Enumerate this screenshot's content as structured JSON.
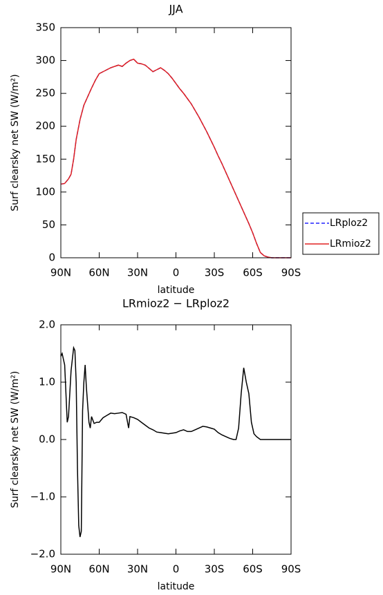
{
  "chart_data": [
    {
      "type": "line",
      "title": "JJA",
      "x_label": "latitude",
      "y_label": "Surf clearsky net SW (W/m²)",
      "x": [
        90,
        87,
        84,
        82,
        80,
        78,
        75,
        72,
        69,
        66,
        63,
        60,
        57,
        54,
        51,
        48,
        45,
        42,
        39,
        36,
        33,
        30,
        27,
        24,
        21,
        18,
        15,
        12,
        9,
        6,
        3,
        0,
        -3,
        -6,
        -9,
        -12,
        -15,
        -18,
        -21,
        -24,
        -27,
        -30,
        -33,
        -36,
        -39,
        -42,
        -45,
        -48,
        -51,
        -54,
        -57,
        -60,
        -63,
        -66,
        -69,
        -72,
        -75,
        -80,
        -85,
        -90
      ],
      "series": [
        {
          "name": "LRploz2",
          "color": "#2020ff",
          "style": "dashed",
          "values": [
            112,
            113,
            120,
            127,
            150,
            180,
            210,
            232,
            245,
            258,
            270,
            280,
            283,
            286,
            289,
            291,
            293,
            291,
            296,
            300,
            302,
            296,
            295,
            293,
            288,
            283,
            286,
            289,
            285,
            280,
            273,
            265,
            257,
            250,
            242,
            234,
            224,
            214,
            203,
            192,
            180,
            168,
            155,
            143,
            130,
            117,
            104,
            91,
            78,
            65,
            52,
            38,
            22,
            8,
            3,
            1,
            0,
            0,
            0,
            0
          ]
        },
        {
          "name": "LRmioz2",
          "color": "#e02020",
          "style": "solid",
          "values": [
            112,
            113,
            120,
            127,
            150,
            180,
            210,
            232,
            245,
            258,
            270,
            280,
            283,
            286,
            289,
            291,
            293,
            291,
            296,
            300,
            302,
            296,
            295,
            293,
            288,
            283,
            286,
            289,
            285,
            280,
            273,
            265,
            257,
            250,
            242,
            234,
            224,
            214,
            203,
            192,
            180,
            168,
            155,
            143,
            130,
            117,
            104,
            91,
            78,
            65,
            52,
            38,
            22,
            8,
            3,
            1,
            0,
            0,
            0,
            0
          ]
        }
      ],
      "xlim": [
        90,
        -90
      ],
      "xticks": [
        {
          "value": 90,
          "label": "90N"
        },
        {
          "value": 60,
          "label": "60N"
        },
        {
          "value": 30,
          "label": "30N"
        },
        0,
        {
          "value": -30,
          "label": "30S"
        },
        {
          "value": -60,
          "label": "60S"
        },
        {
          "value": -90,
          "label": "90S"
        }
      ],
      "ylim": [
        0,
        350
      ],
      "yticks": [
        0,
        50,
        100,
        150,
        200,
        250,
        300,
        350
      ],
      "legend": "right"
    },
    {
      "type": "line",
      "title": "LRmioz2 − LRploz2",
      "x_label": "latitude",
      "y_label": "Surf clearsky net SW (W/m²)",
      "x": [
        90,
        89,
        87,
        86,
        85,
        84,
        83,
        82,
        81,
        80,
        79,
        78,
        77,
        76,
        75,
        74,
        73,
        72,
        71,
        70,
        69,
        68,
        67,
        66,
        64,
        62,
        60,
        57,
        54,
        51,
        48,
        45,
        42,
        39,
        37,
        36,
        33,
        30,
        27,
        24,
        21,
        18,
        15,
        12,
        9,
        6,
        3,
        0,
        -3,
        -6,
        -9,
        -12,
        -15,
        -18,
        -21,
        -24,
        -27,
        -30,
        -33,
        -36,
        -39,
        -42,
        -45,
        -47,
        -49,
        -51,
        -53,
        -55,
        -57,
        -59,
        -61,
        -63,
        -66,
        -70,
        -80,
        -90
      ],
      "values": [
        1.45,
        1.5,
        1.3,
        0.8,
        0.3,
        0.4,
        0.8,
        1.2,
        1.4,
        1.6,
        1.55,
        1.0,
        -0.5,
        -1.5,
        -1.7,
        -1.6,
        0.5,
        1.0,
        1.3,
        0.9,
        0.6,
        0.3,
        0.2,
        0.4,
        0.28,
        0.3,
        0.3,
        0.38,
        0.42,
        0.46,
        0.45,
        0.46,
        0.47,
        0.44,
        0.2,
        0.4,
        0.38,
        0.35,
        0.3,
        0.25,
        0.2,
        0.17,
        0.13,
        0.12,
        0.11,
        0.1,
        0.11,
        0.12,
        0.15,
        0.17,
        0.14,
        0.14,
        0.17,
        0.2,
        0.23,
        0.22,
        0.2,
        0.18,
        0.12,
        0.08,
        0.05,
        0.02,
        0.0,
        0.0,
        0.2,
        0.8,
        1.25,
        1.0,
        0.8,
        0.3,
        0.1,
        0.05,
        0.0,
        0.0,
        0.0,
        0.0
      ],
      "color": "#000000",
      "xlim": [
        90,
        -90
      ],
      "xticks": [
        {
          "value": 90,
          "label": "90N"
        },
        {
          "value": 60,
          "label": "60N"
        },
        {
          "value": 30,
          "label": "30N"
        },
        0,
        {
          "value": -30,
          "label": "30S"
        },
        {
          "value": -60,
          "label": "60S"
        },
        {
          "value": -90,
          "label": "90S"
        }
      ],
      "ylim": [
        -2,
        2
      ],
      "yticks": [
        {
          "value": -2,
          "label": "−2.0"
        },
        {
          "value": -1,
          "label": "−1.0"
        },
        {
          "value": 0,
          "label": "0.0"
        },
        {
          "value": 1,
          "label": "1.0"
        },
        {
          "value": 2,
          "label": "2.0"
        }
      ]
    }
  ]
}
